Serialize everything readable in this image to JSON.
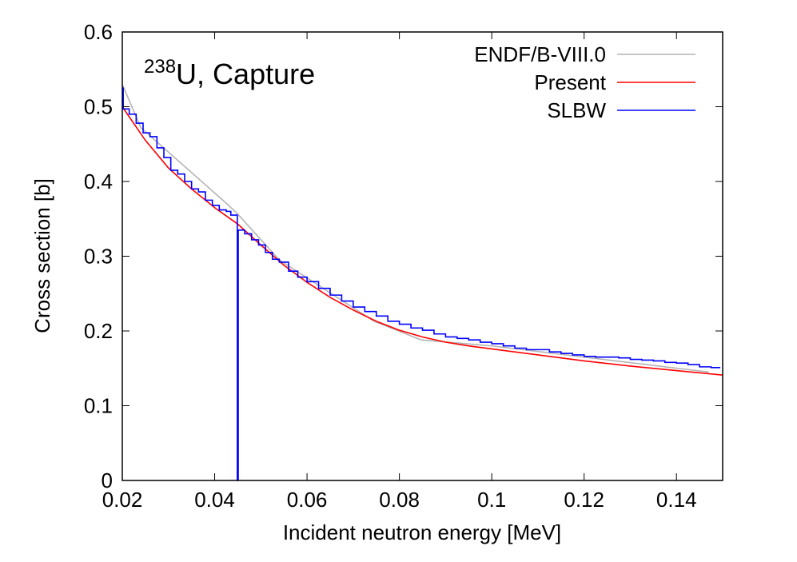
{
  "chart_data": {
    "type": "line",
    "title_nuclide_mass": "238",
    "title_text": "U, Capture",
    "xlabel": "Incident neutron energy [MeV]",
    "ylabel": "Cross section [b]",
    "xlim": [
      0.02,
      0.15
    ],
    "ylim": [
      0,
      0.6
    ],
    "xticks": [
      "0.02",
      "0.04",
      "0.06",
      "0.08",
      "0.1",
      "0.12",
      "0.14"
    ],
    "yticks": [
      "0",
      "0.1",
      "0.2",
      "0.3",
      "0.4",
      "0.5",
      "0.6"
    ],
    "grid": false,
    "legend_position": "top-right",
    "series": [
      {
        "name": "ENDF/B-VIII.0",
        "color": "#b4b4b4",
        "style": "line",
        "points": [
          [
            0.02,
            0.53
          ],
          [
            0.024,
            0.472
          ],
          [
            0.0425,
            0.371
          ],
          [
            0.0449,
            0.357
          ],
          [
            0.054,
            0.295
          ],
          [
            0.0745,
            0.213
          ],
          [
            0.0847,
            0.188
          ],
          [
            0.0944,
            0.183
          ],
          [
            0.1,
            0.18
          ],
          [
            0.12,
            0.165
          ],
          [
            0.147,
            0.145
          ]
        ]
      },
      {
        "name": "Present",
        "color": "#ff0000",
        "style": "line",
        "points": [
          [
            0.02,
            0.5
          ],
          [
            0.025,
            0.455
          ],
          [
            0.03,
            0.418
          ],
          [
            0.035,
            0.39
          ],
          [
            0.04,
            0.365
          ],
          [
            0.045,
            0.343
          ],
          [
            0.05,
            0.315
          ],
          [
            0.055,
            0.288
          ],
          [
            0.06,
            0.265
          ],
          [
            0.065,
            0.245
          ],
          [
            0.07,
            0.228
          ],
          [
            0.075,
            0.213
          ],
          [
            0.08,
            0.201
          ],
          [
            0.085,
            0.192
          ],
          [
            0.09,
            0.185
          ],
          [
            0.095,
            0.18
          ],
          [
            0.1,
            0.176
          ],
          [
            0.11,
            0.168
          ],
          [
            0.12,
            0.16
          ],
          [
            0.13,
            0.153
          ],
          [
            0.14,
            0.147
          ],
          [
            0.15,
            0.141
          ]
        ]
      },
      {
        "name": "SLBW",
        "color": "#0000ff",
        "style": "step",
        "end": 0.1495,
        "steps": [
          [
            0.02,
            0.525
          ],
          [
            0.0202,
            0.497
          ],
          [
            0.0215,
            0.49
          ],
          [
            0.023,
            0.478
          ],
          [
            0.0245,
            0.465
          ],
          [
            0.026,
            0.46
          ],
          [
            0.0275,
            0.445
          ],
          [
            0.029,
            0.432
          ],
          [
            0.0305,
            0.415
          ],
          [
            0.032,
            0.41
          ],
          [
            0.0335,
            0.4
          ],
          [
            0.035,
            0.39
          ],
          [
            0.0365,
            0.386
          ],
          [
            0.038,
            0.375
          ],
          [
            0.0395,
            0.368
          ],
          [
            0.041,
            0.362
          ],
          [
            0.0425,
            0.36
          ],
          [
            0.0435,
            0.355
          ],
          [
            0.0449,
            0
          ],
          [
            0.0451,
            0.335
          ],
          [
            0.0465,
            0.33
          ],
          [
            0.048,
            0.322
          ],
          [
            0.0495,
            0.315
          ],
          [
            0.051,
            0.305
          ],
          [
            0.0525,
            0.296
          ],
          [
            0.054,
            0.292
          ],
          [
            0.056,
            0.28
          ],
          [
            0.058,
            0.272
          ],
          [
            0.06,
            0.266
          ],
          [
            0.0625,
            0.257
          ],
          [
            0.065,
            0.248
          ],
          [
            0.0675,
            0.24
          ],
          [
            0.07,
            0.232
          ],
          [
            0.0725,
            0.226
          ],
          [
            0.075,
            0.22
          ],
          [
            0.0775,
            0.213
          ],
          [
            0.08,
            0.209
          ],
          [
            0.0825,
            0.204
          ],
          [
            0.085,
            0.201
          ],
          [
            0.0875,
            0.196
          ],
          [
            0.09,
            0.192
          ],
          [
            0.0925,
            0.19
          ],
          [
            0.095,
            0.188
          ],
          [
            0.0975,
            0.185
          ],
          [
            0.1,
            0.183
          ],
          [
            0.1025,
            0.18
          ],
          [
            0.105,
            0.177
          ],
          [
            0.1075,
            0.175
          ],
          [
            0.11,
            0.175
          ],
          [
            0.1125,
            0.172
          ],
          [
            0.115,
            0.17
          ],
          [
            0.1175,
            0.168
          ],
          [
            0.12,
            0.166
          ],
          [
            0.1225,
            0.165
          ],
          [
            0.125,
            0.165
          ],
          [
            0.1275,
            0.164
          ],
          [
            0.13,
            0.162
          ],
          [
            0.1325,
            0.161
          ],
          [
            0.135,
            0.16
          ],
          [
            0.1375,
            0.158
          ],
          [
            0.14,
            0.157
          ],
          [
            0.1425,
            0.155
          ],
          [
            0.145,
            0.152
          ],
          [
            0.1475,
            0.151
          ]
        ]
      }
    ]
  }
}
